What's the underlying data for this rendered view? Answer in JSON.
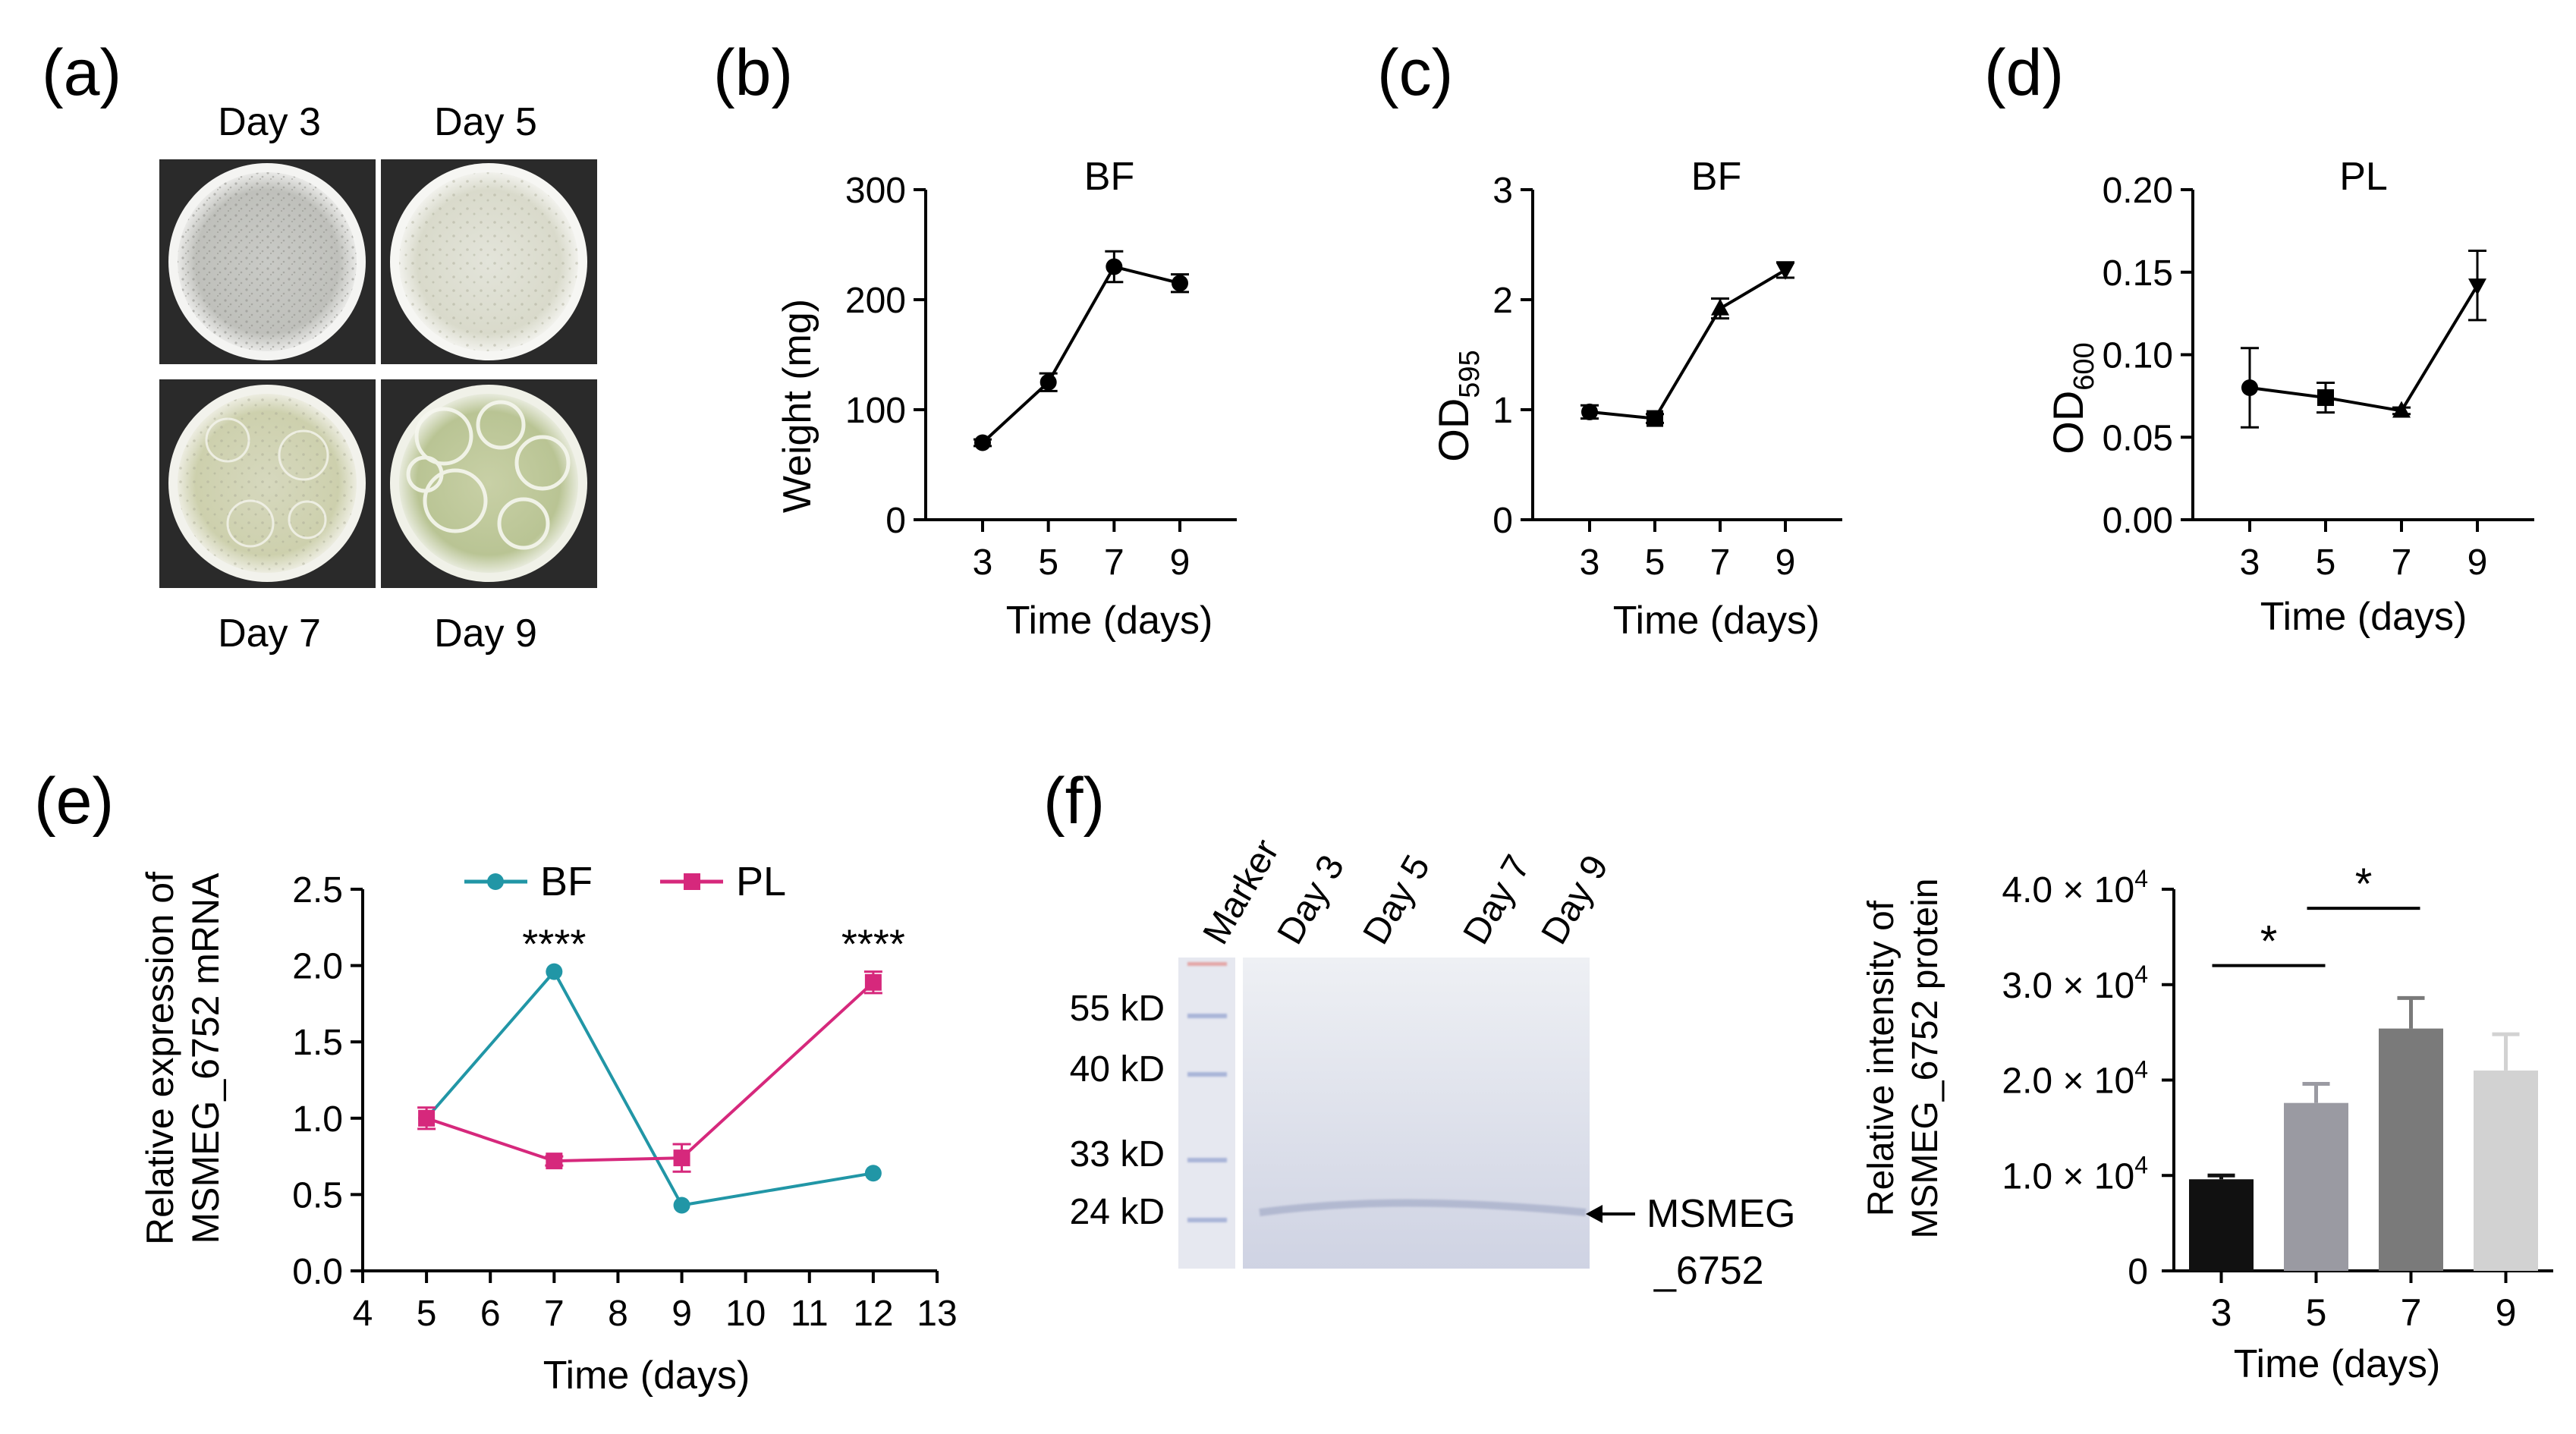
{
  "panels": {
    "a": {
      "letter": "(a)",
      "labels": [
        "Day 3",
        "Day 5",
        "Day 7",
        "Day 9"
      ]
    },
    "f": {
      "letter": "(f)",
      "lane_labels": [
        "Marker",
        "Day 3",
        "Day 5",
        "Day 7",
        "Day 9"
      ],
      "marker_labels": [
        "55 kD",
        "40 kD",
        "33 kD",
        "24 kD"
      ],
      "arrow_label_line1": "MSMEG",
      "arrow_label_line2": "_6752"
    }
  },
  "colors": {
    "bf": "#2196A6",
    "pl": "#D6287C",
    "bars": [
      "#111111",
      "#9a9aa2",
      "#7a7a7a",
      "#d2d2d2"
    ]
  },
  "chart_data": [
    {
      "id": "b",
      "letter": "(b)",
      "type": "line",
      "title": "BF",
      "xlabel": "Time (days)",
      "ylabel": "Weight (mg)",
      "x": [
        3,
        5,
        7,
        9
      ],
      "xlim": [
        3,
        9
      ],
      "xticks": [
        "3",
        "5",
        "7",
        "9"
      ],
      "ylim": [
        0,
        300
      ],
      "yticks": [
        "0",
        "100",
        "200",
        "300"
      ],
      "series": [
        {
          "values": [
            70,
            125,
            230,
            215
          ],
          "errors": [
            3,
            8,
            14,
            8
          ],
          "marker": "circle",
          "color": "#000000"
        }
      ]
    },
    {
      "id": "c",
      "letter": "(c)",
      "type": "line",
      "title": "BF",
      "xlabel": "Time (days)",
      "ylabel_main": "OD",
      "ylabel_sub": "595",
      "x": [
        3,
        5,
        7,
        9
      ],
      "xlim": [
        3,
        9
      ],
      "xticks": [
        "3",
        "5",
        "7",
        "9"
      ],
      "ylim": [
        0,
        3
      ],
      "yticks": [
        "0",
        "1",
        "2",
        "3"
      ],
      "series": [
        {
          "values": [
            0.98,
            0.92,
            1.92,
            2.27
          ],
          "errors": [
            0.06,
            0.04,
            0.09,
            0.07
          ],
          "marker": "mixed",
          "color": "#000000"
        }
      ]
    },
    {
      "id": "d",
      "letter": "(d)",
      "type": "line",
      "title": "PL",
      "xlabel": "Time (days)",
      "ylabel_main": "OD",
      "ylabel_sub": "600",
      "x": [
        3,
        5,
        7,
        9
      ],
      "xlim": [
        3,
        9
      ],
      "xticks": [
        "3",
        "5",
        "7",
        "9"
      ],
      "ylim": [
        0,
        0.2
      ],
      "yticks": [
        "0.00",
        "0.05",
        "0.10",
        "0.15",
        "0.20"
      ],
      "series": [
        {
          "values": [
            0.08,
            0.074,
            0.066,
            0.142
          ],
          "errors": [
            0.024,
            0.009,
            0.002,
            0.021
          ],
          "marker": "mixed",
          "color": "#000000"
        }
      ]
    },
    {
      "id": "e",
      "letter": "(e)",
      "type": "line",
      "xlabel": "Time (days)",
      "ylabel_line1": "Relative expression of",
      "ylabel_line2": "MSMEG_6752 mRNA",
      "xlim": [
        4,
        13
      ],
      "xticks": [
        "4",
        "5",
        "6",
        "7",
        "8",
        "9",
        "10",
        "11",
        "12",
        "13"
      ],
      "ylim": [
        0,
        2.5
      ],
      "yticks": [
        "0.0",
        "0.5",
        "1.0",
        "1.5",
        "2.0",
        "2.5"
      ],
      "series": [
        {
          "name": "BF",
          "x": [
            5,
            7,
            9,
            12
          ],
          "values": [
            1.0,
            1.96,
            0.43,
            0.64
          ],
          "errors": [
            0,
            0,
            0,
            0
          ],
          "marker": "circle",
          "color": "#2196A6"
        },
        {
          "name": "PL",
          "x": [
            5,
            7,
            9,
            12
          ],
          "values": [
            1.0,
            0.72,
            0.74,
            1.89
          ],
          "errors": [
            0.07,
            0.03,
            0.09,
            0.07
          ],
          "marker": "square",
          "color": "#D6287C"
        }
      ],
      "annotations": [
        {
          "x": 7,
          "y": 2.15,
          "text": "****"
        },
        {
          "x": 12,
          "y": 2.15,
          "text": "****"
        }
      ]
    },
    {
      "id": "f2",
      "type": "bar",
      "xlabel": "Time (days)",
      "ylabel_line1": "Relative intensity of",
      "ylabel_line2": "MSMEG_6752 protein",
      "categories": [
        "3",
        "5",
        "7",
        "9"
      ],
      "values": [
        9600,
        17600,
        25400,
        21000
      ],
      "errors": [
        400,
        2000,
        3200,
        3800
      ],
      "ylim": [
        0,
        40000
      ],
      "yticks": [
        {
          "value": 0,
          "text": "0",
          "exp": ""
        },
        {
          "value": 10000,
          "text": "1.0 × 10",
          "exp": "4"
        },
        {
          "value": 20000,
          "text": "2.0 × 10",
          "exp": "4"
        },
        {
          "value": 30000,
          "text": "3.0 × 10",
          "exp": "4"
        },
        {
          "value": 40000,
          "text": "4.0 × 10",
          "exp": "4"
        }
      ],
      "significance": [
        {
          "from": "3",
          "to": "5",
          "y": 32000,
          "text": "*"
        },
        {
          "from": "5",
          "to": "7",
          "y": 38000,
          "text": "*"
        }
      ]
    }
  ]
}
